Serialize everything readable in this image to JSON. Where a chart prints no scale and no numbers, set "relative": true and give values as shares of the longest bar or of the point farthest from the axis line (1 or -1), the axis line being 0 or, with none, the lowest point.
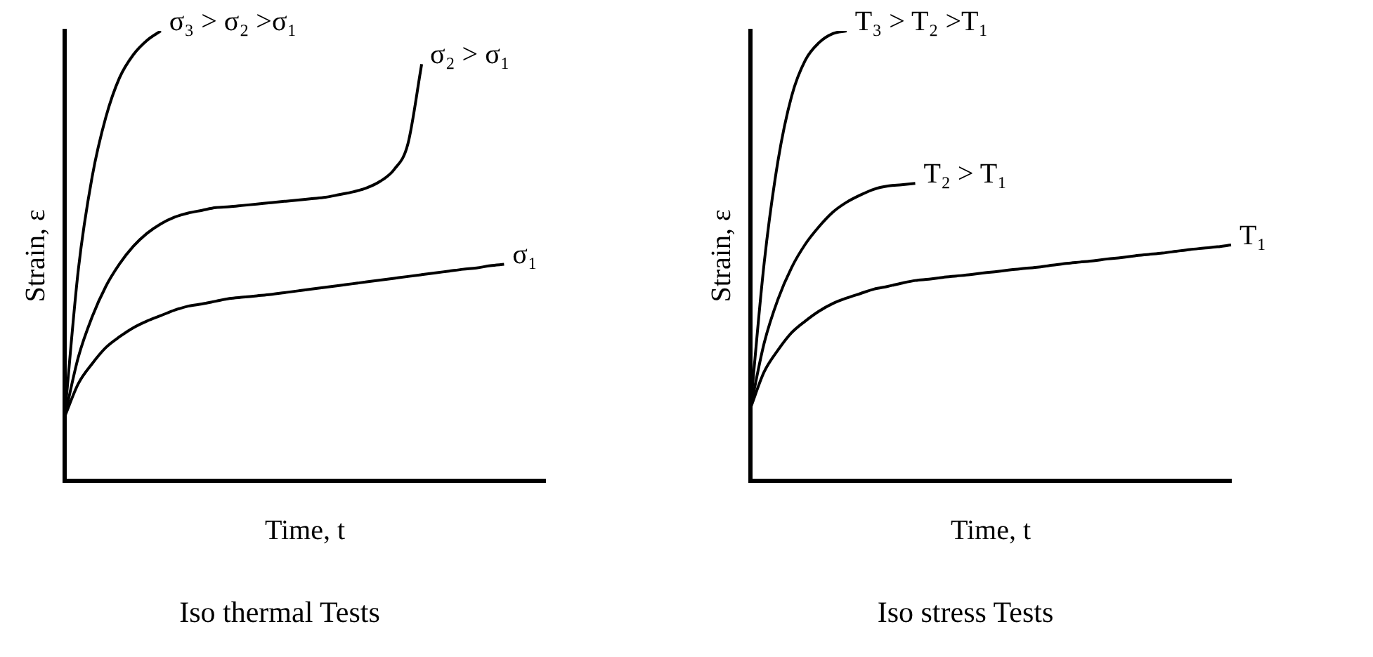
{
  "chart_data": [
    {
      "type": "line",
      "title": "Iso thermal Tests",
      "xlabel": "Time, t",
      "ylabel": "Strain, ε",
      "relative": true,
      "legend": false,
      "categories": [
        null,
        null,
        null,
        null,
        null,
        null,
        null,
        null,
        null,
        null,
        null,
        null,
        null,
        null,
        null,
        null,
        null,
        null,
        null,
        null,
        null,
        null,
        null,
        null,
        null,
        null,
        null,
        null,
        null,
        null,
        null,
        null,
        null,
        null,
        null,
        null
      ],
      "series": [
        {
          "name": "σ₁",
          "color": "#000000",
          "values": [
            0.142,
            0.216,
            0.26,
            0.296,
            0.32,
            0.34,
            0.355,
            0.367,
            0.379,
            0.388,
            0.393,
            0.399,
            0.405,
            0.408,
            0.411,
            0.414,
            0.418,
            0.422,
            0.426,
            0.43,
            0.434,
            0.438,
            0.442,
            0.446,
            0.45,
            0.454,
            0.458,
            0.462,
            0.466,
            0.47,
            0.473,
            0.478,
            0.481,
            null,
            null,
            null
          ]
        },
        {
          "name": "σ₂ > σ₁",
          "color": "#000000",
          "values": [
            0.142,
            0.275,
            0.364,
            0.432,
            0.482,
            0.521,
            0.55,
            0.571,
            0.586,
            0.595,
            0.601,
            0.607,
            0.609,
            0.612,
            0.615,
            0.618,
            0.621,
            0.624,
            0.627,
            0.63,
            0.636,
            0.642,
            0.651,
            0.666,
            0.692,
            0.749,
            0.926,
            null,
            null,
            null,
            null,
            null,
            null,
            null,
            null,
            null
          ]
        },
        {
          "name": "σ₃ > σ₂ >σ₁",
          "color": "#000000",
          "values": [
            0.142,
            0.47,
            0.675,
            0.808,
            0.896,
            0.947,
            0.979,
            1.0,
            null,
            null,
            null,
            null,
            null,
            null,
            null,
            null,
            null,
            null,
            null,
            null,
            null,
            null,
            null,
            null,
            null,
            null,
            null,
            null,
            null,
            null,
            null,
            null,
            null,
            null,
            null,
            null
          ]
        }
      ]
    },
    {
      "type": "line",
      "title": "Iso stress Tests",
      "xlabel": "Time, t",
      "ylabel": "Strain, ε",
      "relative": true,
      "legend": false,
      "categories": [
        null,
        null,
        null,
        null,
        null,
        null,
        null,
        null,
        null,
        null,
        null,
        null,
        null,
        null,
        null,
        null,
        null,
        null,
        null,
        null,
        null,
        null,
        null,
        null,
        null,
        null,
        null,
        null,
        null,
        null,
        null,
        null,
        null,
        null,
        null,
        null
      ],
      "series": [
        {
          "name": "T₁",
          "color": "#000000",
          "values": [
            0.161,
            0.242,
            0.29,
            0.329,
            0.355,
            0.377,
            0.394,
            0.406,
            0.416,
            0.426,
            0.432,
            0.439,
            0.445,
            0.448,
            0.452,
            0.455,
            0.458,
            0.462,
            0.465,
            0.469,
            0.472,
            0.475,
            0.479,
            0.483,
            0.486,
            0.489,
            0.493,
            0.496,
            0.5,
            0.503,
            0.506,
            0.51,
            0.514,
            0.517,
            0.52,
            0.524
          ]
        },
        {
          "name": "T₂ > T₁",
          "color": "#000000",
          "values": [
            0.161,
            0.306,
            0.403,
            0.474,
            0.526,
            0.565,
            0.597,
            0.619,
            0.635,
            0.648,
            0.655,
            0.658,
            0.661,
            null,
            null,
            null,
            null,
            null,
            null,
            null,
            null,
            null,
            null,
            null,
            null,
            null,
            null,
            null,
            null,
            null,
            null,
            null,
            null,
            null,
            null,
            null
          ]
        },
        {
          "name": "T₃ > T₂ >T₁",
          "color": "#000000",
          "values": [
            0.161,
            0.484,
            0.71,
            0.855,
            0.935,
            0.974,
            0.994,
            1.0,
            null,
            null,
            null,
            null,
            null,
            null,
            null,
            null,
            null,
            null,
            null,
            null,
            null,
            null,
            null,
            null,
            null,
            null,
            null,
            null,
            null,
            null,
            null,
            null,
            null,
            null,
            null,
            null
          ]
        }
      ]
    }
  ]
}
